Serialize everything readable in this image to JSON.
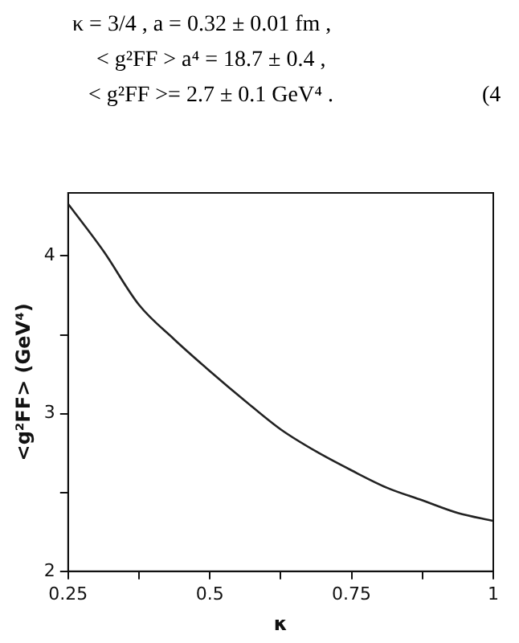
{
  "chart_data": {
    "type": "line",
    "xlabel": "κ",
    "ylabel": "<g²FF> (GeV⁴)",
    "annotations": [
      "κ = 3/4 , a = 0.32 ± 0.01 fm ,",
      "< g²FF > a⁴ = 18.7 ± 0.4 ,",
      "< g²FF >= 2.7 ± 0.1 GeV⁴ .",
      "(4"
    ],
    "x": [
      0.25,
      0.3125,
      0.375,
      0.4375,
      0.5,
      0.5625,
      0.625,
      0.6875,
      0.75,
      0.8125,
      0.875,
      0.9375,
      1
    ],
    "series": [
      {
        "color": "#222222",
        "values": [
          4.33,
          4.03,
          3.69,
          3.47,
          3.27,
          3.08,
          2.9,
          2.76,
          2.64,
          2.53,
          2.45,
          2.37,
          2.32
        ]
      }
    ],
    "xlim": [
      0.25,
      1
    ],
    "xticks": [
      0.25,
      {
        "value": 0.375,
        "label": null
      },
      0.5,
      {
        "value": 0.625,
        "label": null
      },
      0.75,
      {
        "value": 0.875,
        "label": null
      },
      1
    ],
    "ylim": [
      2,
      4.4
    ],
    "yticks": [
      2,
      {
        "value": 2.5,
        "label": null
      },
      3,
      {
        "value": 3.5,
        "label": null
      },
      4
    ],
    "grid": false,
    "legend": false,
    "marker": "none",
    "line_style": "solid"
  }
}
